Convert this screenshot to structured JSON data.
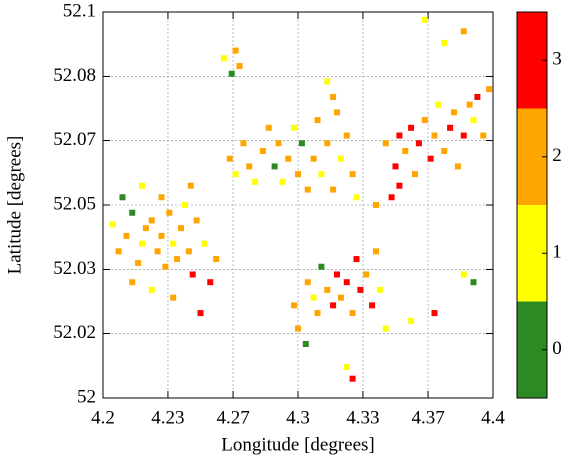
{
  "chart_data": {
    "type": "scatter",
    "xlabel": "Longitude [degrees]",
    "ylabel": "Latitude [degrees]",
    "xlim": [
      4.2,
      4.4
    ],
    "ylim": [
      52,
      52.1
    ],
    "xticks": [
      4.2,
      {
        "value": 4.2333,
        "label": "4.23"
      },
      {
        "value": 4.2667,
        "label": "4.27"
      },
      4.3,
      {
        "value": 4.3333,
        "label": "4.33"
      },
      {
        "value": 4.3667,
        "label": "4.37"
      },
      4.4
    ],
    "yticks": [
      52,
      {
        "value": 52.0167,
        "label": "52.02"
      },
      {
        "value": 52.0333,
        "label": "52.03"
      },
      52.05,
      {
        "value": 52.0667,
        "label": "52.07"
      },
      {
        "value": 52.0833,
        "label": "52.08"
      },
      52.1
    ],
    "grid": true,
    "colormap": [
      "#2b8a22",
      "#ffff00",
      "#ffa500",
      "#ff0000"
    ],
    "clim": [
      -0.5,
      3.5
    ],
    "cticks": [
      0,
      1,
      2,
      3
    ],
    "x": [
      4.205,
      4.208,
      4.212,
      4.215,
      4.218,
      4.22,
      4.222,
      4.225,
      4.228,
      4.23,
      4.232,
      4.234,
      4.236,
      4.238,
      4.24,
      4.242,
      4.244,
      4.246,
      4.248,
      4.252,
      4.255,
      4.258,
      4.215,
      4.225,
      4.21,
      4.236,
      4.25,
      4.245,
      4.22,
      4.23,
      4.265,
      4.268,
      4.272,
      4.275,
      4.278,
      4.282,
      4.285,
      4.288,
      4.29,
      4.292,
      4.295,
      4.298,
      4.3,
      4.302,
      4.305,
      4.308,
      4.31,
      4.312,
      4.315,
      4.318,
      4.32,
      4.322,
      4.325,
      4.328,
      4.33,
      4.262,
      4.266,
      4.27,
      4.268,
      4.318,
      4.315,
      4.345,
      4.35,
      4.352,
      4.355,
      4.358,
      4.36,
      4.362,
      4.365,
      4.368,
      4.37,
      4.372,
      4.375,
      4.378,
      4.38,
      4.382,
      4.385,
      4.388,
      4.39,
      4.392,
      4.395,
      4.398,
      4.385,
      4.375,
      4.365,
      4.348,
      4.352,
      4.34,
      4.305,
      4.308,
      4.31,
      4.312,
      4.315,
      4.318,
      4.32,
      4.322,
      4.325,
      4.328,
      4.33,
      4.332,
      4.335,
      4.338,
      4.34,
      4.342,
      4.3,
      4.304,
      4.298,
      4.325,
      4.328,
      4.345,
      4.358,
      4.39,
      4.385,
      4.37
    ],
    "y": [
      52.045,
      52.038,
      52.042,
      52.048,
      52.035,
      52.04,
      52.044,
      52.046,
      52.038,
      52.042,
      52.034,
      52.048,
      52.04,
      52.036,
      52.044,
      52.05,
      52.038,
      52.032,
      52.046,
      52.04,
      52.03,
      52.036,
      52.03,
      52.028,
      52.052,
      52.026,
      52.022,
      52.055,
      52.055,
      52.052,
      52.062,
      52.058,
      52.066,
      52.06,
      52.056,
      52.064,
      52.07,
      52.06,
      52.066,
      52.056,
      52.062,
      52.07,
      52.058,
      52.066,
      52.054,
      52.062,
      52.072,
      52.058,
      52.066,
      52.054,
      52.074,
      52.062,
      52.068,
      52.058,
      52.052,
      52.088,
      52.084,
      52.086,
      52.09,
      52.078,
      52.082,
      52.066,
      52.06,
      52.068,
      52.064,
      52.07,
      52.058,
      52.066,
      52.072,
      52.062,
      52.068,
      52.076,
      52.064,
      52.07,
      52.074,
      52.06,
      52.068,
      52.076,
      52.072,
      52.078,
      52.068,
      52.08,
      52.095,
      52.092,
      52.098,
      52.052,
      52.055,
      52.05,
      52.03,
      52.026,
      52.022,
      52.034,
      52.028,
      52.024,
      52.032,
      52.026,
      52.03,
      52.022,
      52.036,
      52.028,
      52.032,
      52.024,
      52.038,
      52.028,
      52.018,
      52.014,
      52.024,
      52.008,
      52.005,
      52.018,
      52.02,
      52.03,
      52.032,
      52.022
    ],
    "values": [
      1,
      2,
      2,
      0,
      2,
      1,
      2,
      2,
      2,
      2,
      2,
      2,
      1,
      2,
      2,
      1,
      2,
      3,
      2,
      1,
      3,
      2,
      2,
      1,
      0,
      2,
      3,
      2,
      1,
      2,
      2,
      1,
      2,
      2,
      1,
      2,
      2,
      0,
      2,
      1,
      2,
      1,
      2,
      0,
      2,
      2,
      2,
      1,
      2,
      2,
      2,
      1,
      2,
      2,
      1,
      1,
      0,
      2,
      2,
      2,
      1,
      2,
      3,
      3,
      2,
      3,
      2,
      3,
      2,
      3,
      2,
      1,
      2,
      3,
      2,
      2,
      3,
      2,
      1,
      3,
      2,
      2,
      2,
      1,
      1,
      3,
      3,
      2,
      2,
      1,
      2,
      0,
      2,
      3,
      3,
      2,
      3,
      2,
      3,
      3,
      2,
      3,
      2,
      1,
      2,
      0,
      2,
      1,
      3,
      1,
      1,
      0,
      1,
      3
    ]
  }
}
